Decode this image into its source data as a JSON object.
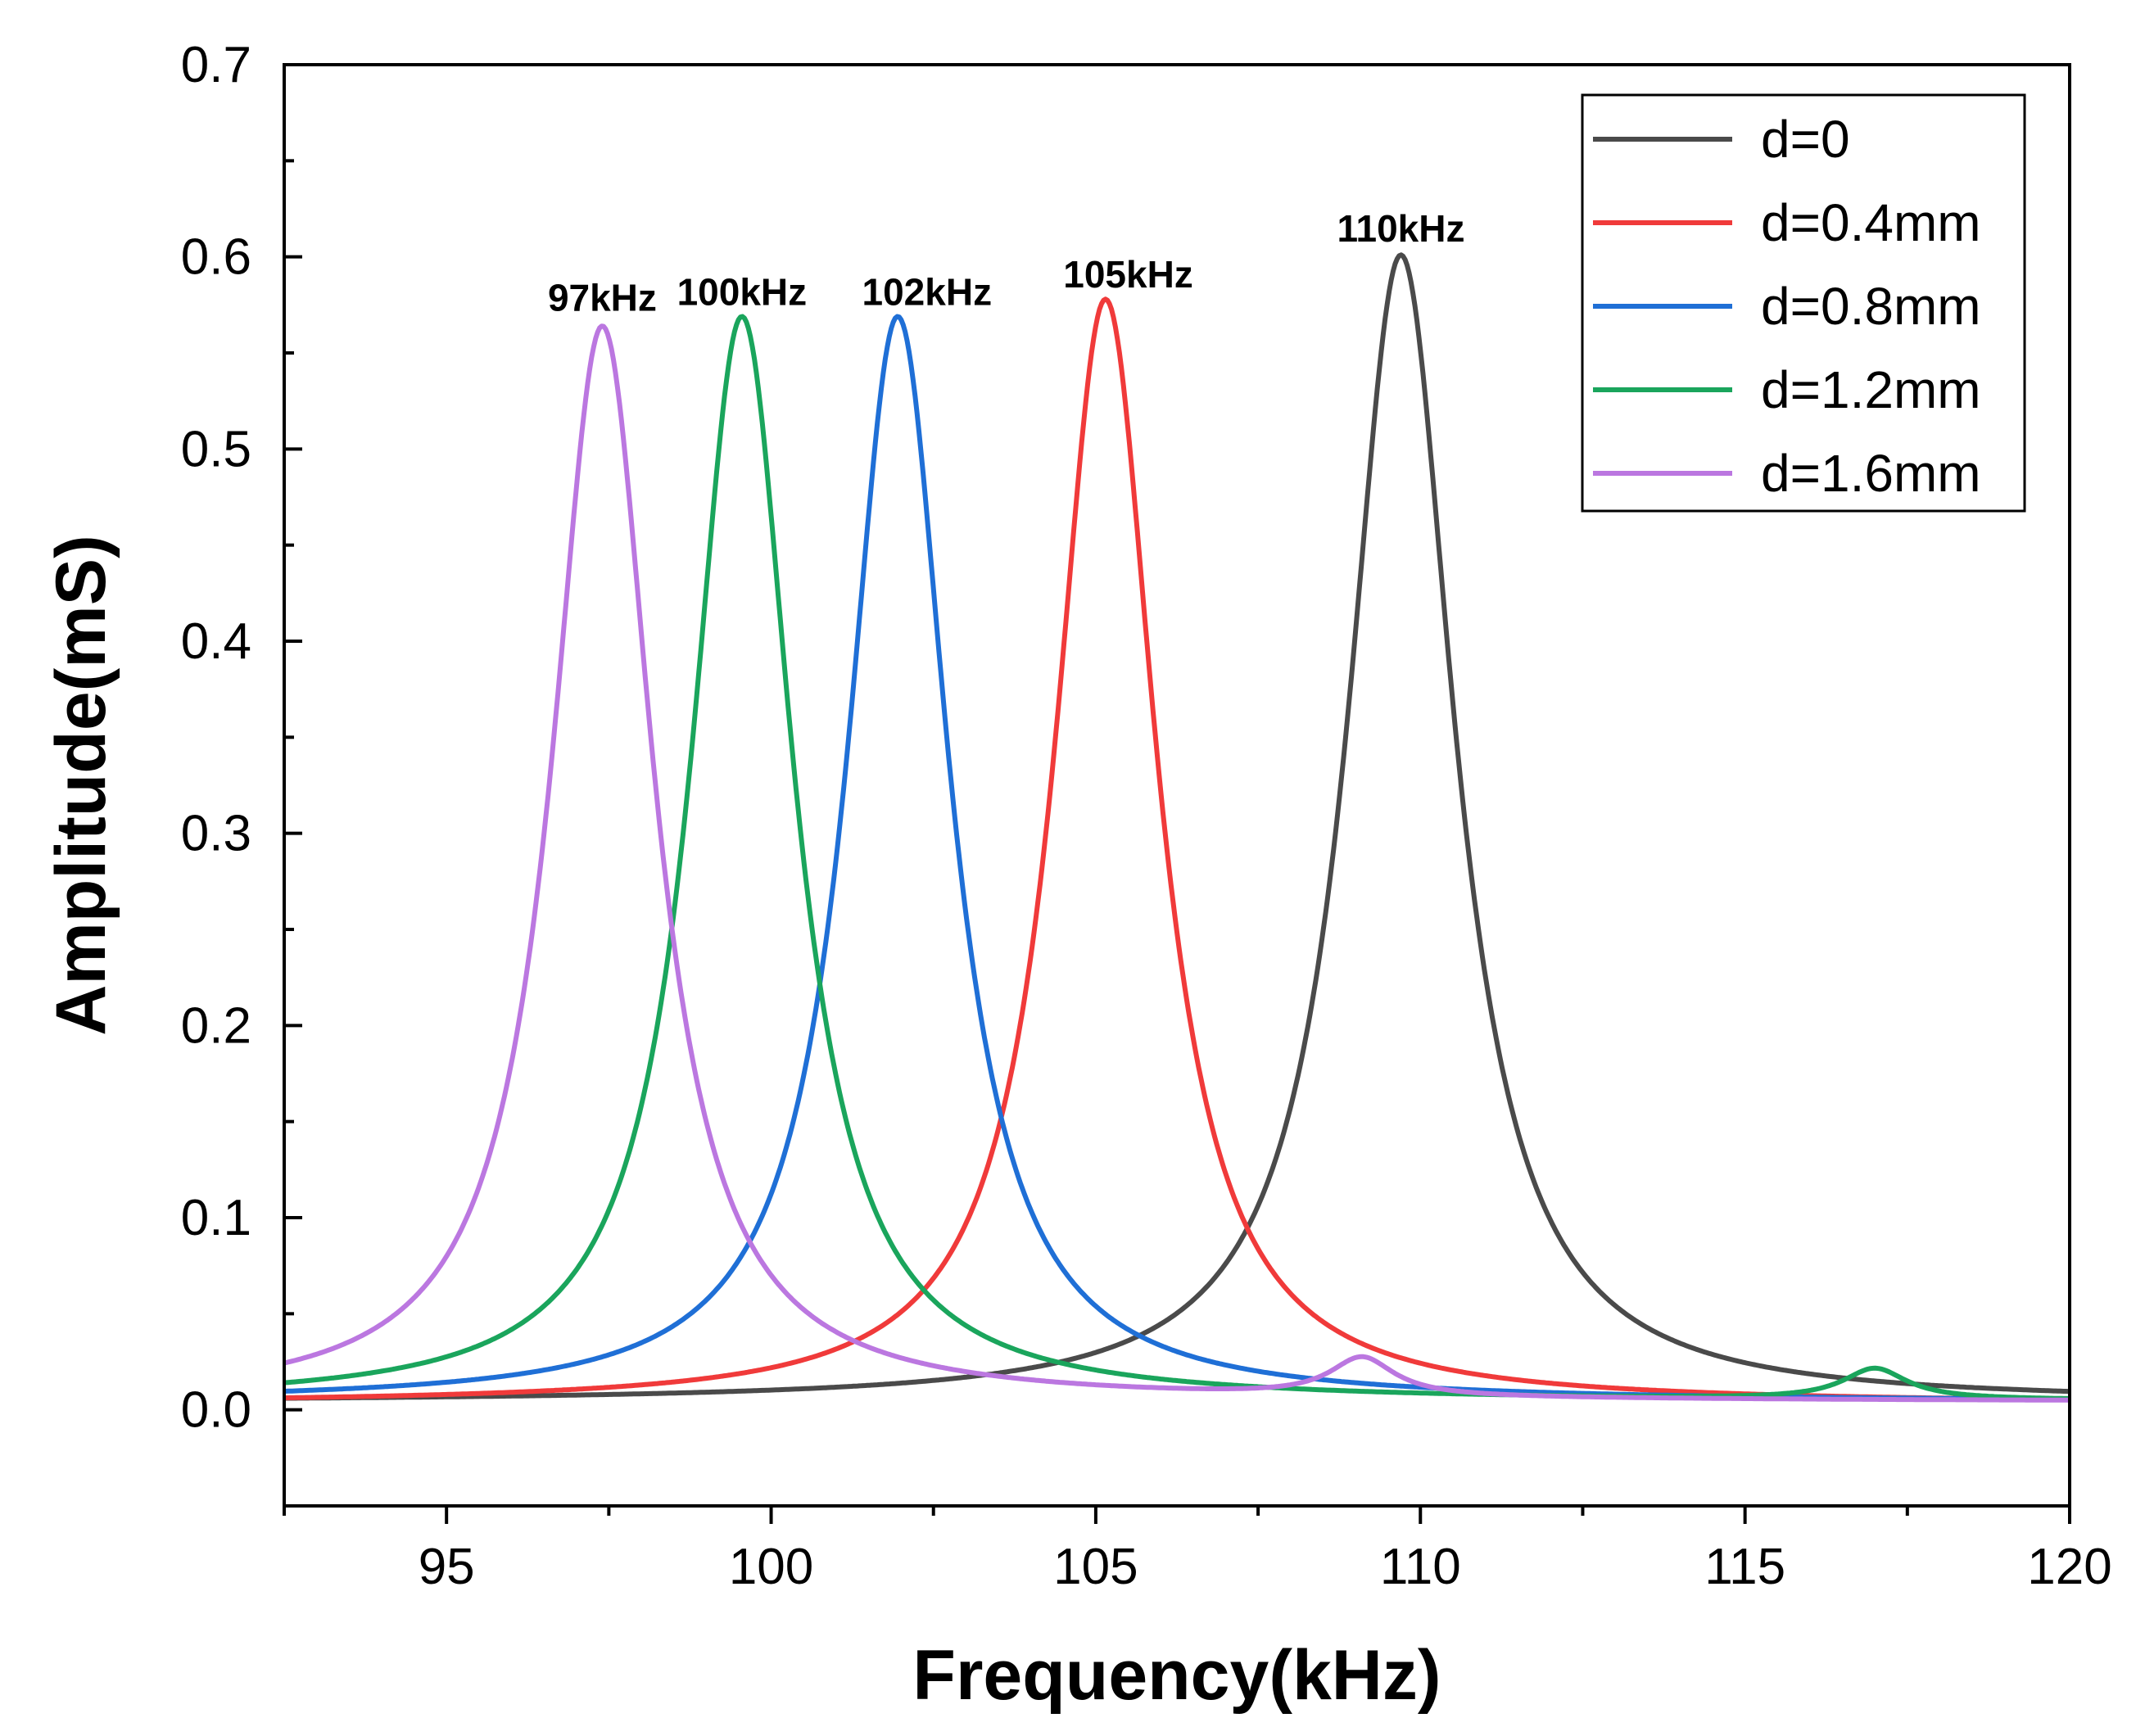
{
  "chart_data": {
    "type": "line",
    "title": "",
    "xlabel": "Frequency(kHz)",
    "ylabel": "Amplitude(mS)",
    "xlim": [
      92.5,
      120
    ],
    "ylim": [
      -0.05,
      0.7
    ],
    "xticks": [
      95,
      100,
      105,
      110,
      115,
      120
    ],
    "xtick_labels": [
      "95",
      "100",
      "105",
      "110",
      "115",
      "120"
    ],
    "yticks": [
      0.0,
      0.1,
      0.2,
      0.3,
      0.4,
      0.5,
      0.6,
      0.7
    ],
    "ytick_labels": [
      "0.0",
      "0.1",
      "0.2",
      "0.3",
      "0.4",
      "0.5",
      "0.6",
      "0.7"
    ],
    "grid": false,
    "legend_position": "top-right",
    "series": [
      {
        "name": "d=0",
        "color": "#4a4a4a",
        "peaks": [
          {
            "f": 109.7,
            "amp": 0.597,
            "gamma": 1.0
          }
        ],
        "base": 0.004
      },
      {
        "name": "d=0.4mm",
        "color": "#f03a3a",
        "peaks": [
          {
            "f": 105.15,
            "amp": 0.575,
            "gamma": 0.95
          }
        ],
        "base": 0.003
      },
      {
        "name": "d=0.8mm",
        "color": "#1f6fd6",
        "peaks": [
          {
            "f": 101.95,
            "amp": 0.565,
            "gamma": 0.95
          }
        ],
        "base": 0.004
      },
      {
        "name": "d=1.2mm",
        "color": "#1aa55c",
        "peaks": [
          {
            "f": 99.55,
            "amp": 0.565,
            "gamma": 0.95
          },
          {
            "f": 117.0,
            "amp": 0.016,
            "gamma": 0.6
          }
        ],
        "base": 0.004
      },
      {
        "name": "d=1.6mm",
        "color": "#bb77e0",
        "peaks": [
          {
            "f": 97.4,
            "amp": 0.56,
            "gamma": 0.95
          },
          {
            "f": 109.1,
            "amp": 0.02,
            "gamma": 0.6
          }
        ],
        "base": 0.004
      }
    ],
    "annotations": [
      {
        "text": "97kHz",
        "x": 97.4,
        "y": 0.572
      },
      {
        "text": "100kHz",
        "x": 99.55,
        "y": 0.575
      },
      {
        "text": "102kHz",
        "x": 102.4,
        "y": 0.575
      },
      {
        "text": "105kHz",
        "x": 105.5,
        "y": 0.584
      },
      {
        "text": "110kHz",
        "x": 109.7,
        "y": 0.608
      }
    ]
  }
}
